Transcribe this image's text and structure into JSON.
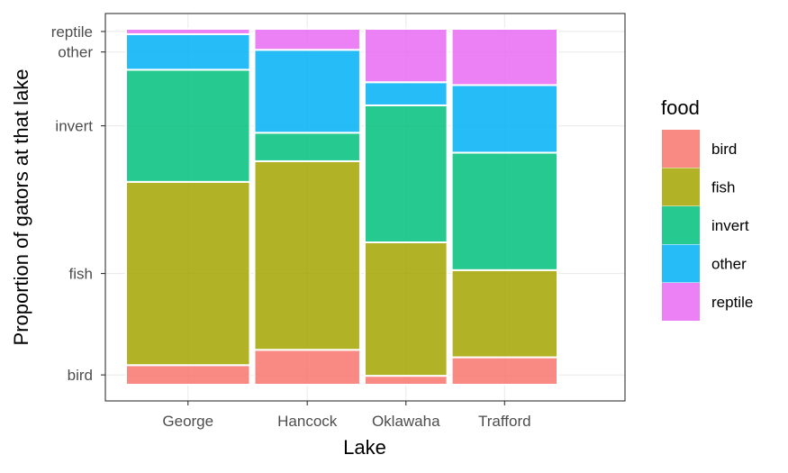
{
  "chart_data": {
    "type": "mosaic",
    "title": "",
    "xlabel": "Lake",
    "ylabel": "Proportion of gators at that lake",
    "categories": [
      "George",
      "Hancock",
      "Oklawaha",
      "Trafford"
    ],
    "widths": [
      0.267,
      0.228,
      0.178,
      0.228
    ],
    "stack_order": [
      "bird",
      "fish",
      "invert",
      "other",
      "reptile"
    ],
    "series": [
      {
        "name": "bird",
        "color": "#F8766D",
        "values": [
          0.055,
          0.098,
          0.025,
          0.077
        ]
      },
      {
        "name": "fish",
        "color": "#A3A500",
        "values": [
          0.515,
          0.53,
          0.375,
          0.245
        ]
      },
      {
        "name": "invert",
        "color": "#00BF7D",
        "values": [
          0.315,
          0.08,
          0.385,
          0.33
        ]
      },
      {
        "name": "other",
        "color": "#00B0F6",
        "values": [
          0.1,
          0.233,
          0.065,
          0.19
        ]
      },
      {
        "name": "reptile",
        "color": "#E76BF3",
        "values": [
          0.015,
          0.059,
          0.15,
          0.158
        ]
      }
    ],
    "y_tick_labels": [
      "bird",
      "fish",
      "invert",
      "other",
      "reptile"
    ],
    "y_tick_reference": "George",
    "legend": {
      "title": "food",
      "position": "right"
    },
    "grid": true,
    "ylim": [
      0,
      1
    ]
  }
}
